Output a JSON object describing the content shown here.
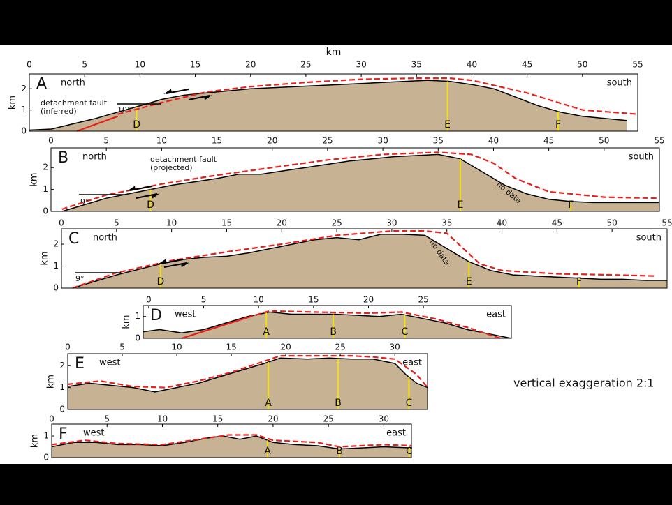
{
  "caption": "vertical exaggeration 2:1",
  "chart_data": [
    {
      "type": "area",
      "panel": "A",
      "x_label": "km",
      "y_label": "km",
      "left_label": "north",
      "right_label": "south",
      "xlim": [
        0,
        55
      ],
      "xticks": [
        0,
        5,
        10,
        15,
        20,
        25,
        30,
        35,
        40,
        45,
        50,
        55
      ],
      "ylim": [
        0,
        2.7
      ],
      "yticks": [
        0,
        1,
        2
      ],
      "series": [
        {
          "x": [
            0,
            2,
            4,
            6,
            8,
            10,
            12,
            14,
            16,
            18,
            20,
            22,
            24,
            26,
            28,
            30,
            32,
            34,
            36,
            38,
            40,
            42,
            44,
            46,
            48,
            50,
            52,
            54
          ],
          "values": [
            0.05,
            0.1,
            0.35,
            0.6,
            0.9,
            1.2,
            1.5,
            1.7,
            1.8,
            1.9,
            2.0,
            2.05,
            2.1,
            2.15,
            2.2,
            2.25,
            2.3,
            2.35,
            2.4,
            2.35,
            2.2,
            2.0,
            1.6,
            1.2,
            0.9,
            0.7,
            0.6,
            0.5
          ],
          "color": "#000000",
          "style": "topography"
        },
        {
          "x": [
            8,
            12,
            16,
            20,
            25,
            30,
            35,
            38,
            40,
            45,
            50,
            55
          ],
          "values": [
            0.8,
            1.35,
            1.85,
            2.1,
            2.3,
            2.45,
            2.5,
            2.5,
            2.4,
            1.8,
            1.0,
            0.8
          ],
          "color": "#e8201c",
          "style": "dashed"
        },
        {
          "x": [
            4.3,
            8
          ],
          "values": [
            0,
            0.7
          ],
          "color": "#e8201c",
          "style": "solid"
        }
      ],
      "markers": [
        {
          "x": 9.7,
          "label": "D"
        },
        {
          "x": 37.8,
          "label": "E"
        },
        {
          "x": 47.8,
          "label": "F"
        }
      ],
      "annotations": [
        "detachment fault",
        "(inferred)",
        "10°"
      ]
    },
    {
      "type": "area",
      "panel": "B",
      "y_label": "km",
      "left_label": "north",
      "right_label": "south",
      "xlim": [
        0,
        55
      ],
      "xticks": [
        0,
        5,
        10,
        15,
        20,
        25,
        30,
        35,
        40,
        45,
        50,
        55
      ],
      "ylim": [
        0,
        2.9
      ],
      "yticks": [
        0,
        1,
        2
      ],
      "series": [
        {
          "x": [
            1,
            3,
            5,
            7,
            9,
            11,
            13,
            15,
            17,
            19,
            21,
            23,
            25,
            27,
            29,
            31,
            33,
            35,
            37,
            39,
            41,
            43,
            45,
            47,
            49,
            51,
            53,
            55
          ],
          "values": [
            0,
            0.3,
            0.6,
            0.8,
            1.0,
            1.2,
            1.35,
            1.5,
            1.7,
            1.7,
            1.85,
            2.0,
            2.15,
            2.3,
            2.4,
            2.5,
            2.55,
            2.6,
            2.4,
            1.8,
            1.2,
            0.8,
            0.55,
            0.45,
            0.4,
            0.4,
            0.4,
            0.4
          ],
          "color": "#000000",
          "style": "topography"
        },
        {
          "x": [
            1,
            5,
            10,
            15,
            20,
            25,
            30,
            35,
            38,
            40,
            42,
            45,
            50,
            55
          ],
          "values": [
            0.1,
            0.75,
            1.25,
            1.65,
            2.0,
            2.35,
            2.6,
            2.7,
            2.6,
            2.2,
            1.5,
            0.9,
            0.65,
            0.6
          ],
          "color": "#e8201c",
          "style": "dashed"
        }
      ],
      "markers": [
        {
          "x": 9,
          "label": "D"
        },
        {
          "x": 37,
          "label": "E"
        },
        {
          "x": 47,
          "label": "F"
        }
      ],
      "annotations": [
        "detachment fault",
        "(projected)",
        "9°",
        "no data"
      ]
    },
    {
      "type": "area",
      "panel": "C",
      "y_label": "km",
      "left_label": "north",
      "right_label": "south",
      "xlim": [
        0,
        55
      ],
      "xticks": [
        0,
        5,
        10,
        15,
        20,
        25,
        30,
        35,
        40,
        45,
        50,
        55
      ],
      "ylim": [
        0,
        2.7
      ],
      "yticks": [
        0,
        1,
        2
      ],
      "series": [
        {
          "x": [
            1,
            3,
            5,
            7,
            9,
            11,
            13,
            15,
            17,
            19,
            21,
            23,
            25,
            27,
            29,
            31,
            33,
            35,
            37,
            39,
            41,
            43,
            45,
            47,
            49,
            51,
            53,
            55
          ],
          "values": [
            0,
            0.3,
            0.6,
            0.85,
            1.1,
            1.3,
            1.4,
            1.45,
            1.6,
            1.8,
            2.0,
            2.2,
            2.3,
            2.2,
            2.45,
            2.45,
            2.4,
            1.8,
            1.2,
            0.8,
            0.6,
            0.55,
            0.5,
            0.45,
            0.4,
            0.4,
            0.35,
            0.35
          ],
          "color": "#000000",
          "style": "topography"
        },
        {
          "x": [
            1,
            5,
            10,
            15,
            20,
            25,
            30,
            33,
            35,
            38,
            40,
            45,
            50,
            54
          ],
          "values": [
            0,
            0.7,
            1.25,
            1.65,
            2.0,
            2.4,
            2.6,
            2.6,
            2.5,
            1.1,
            0.8,
            0.65,
            0.6,
            0.55
          ],
          "color": "#e8201c",
          "style": "dashed"
        }
      ],
      "markers": [
        {
          "x": 9,
          "label": "D"
        },
        {
          "x": 37,
          "label": "E"
        },
        {
          "x": 47,
          "label": "F"
        }
      ],
      "annotations": [
        "9°",
        "no data"
      ]
    },
    {
      "type": "area",
      "panel": "D",
      "y_label": "km",
      "left_label": "west",
      "right_label": "east",
      "xlim": [
        -0.5,
        33
      ],
      "xticks": [
        0,
        5,
        10,
        15,
        20,
        25
      ],
      "ylim": [
        0,
        1.5
      ],
      "yticks": [
        0,
        1
      ],
      "series": [
        {
          "x": [
            -0.5,
            1,
            3,
            5,
            7,
            9,
            11,
            13,
            15,
            17,
            19,
            21,
            23,
            25,
            27,
            29,
            31,
            33
          ],
          "values": [
            0.3,
            0.4,
            0.25,
            0.4,
            0.7,
            1.0,
            1.2,
            1.1,
            1.1,
            1.1,
            1.05,
            1.0,
            1.1,
            0.9,
            0.7,
            0.4,
            0.2,
            0
          ],
          "color": "#000000",
          "style": "topography"
        },
        {
          "x": [
            9,
            11,
            15,
            20,
            23,
            26,
            29,
            32
          ],
          "values": [
            0.95,
            1.25,
            1.2,
            1.15,
            1.2,
            0.9,
            0.5,
            0
          ],
          "color": "#e8201c",
          "style": "dashed"
        },
        {
          "x": [
            3,
            9
          ],
          "values": [
            0,
            0.95
          ],
          "color": "#e8201c",
          "style": "solid"
        }
      ],
      "markers": [
        {
          "x": 10.7,
          "label": "A"
        },
        {
          "x": 16.8,
          "label": "B"
        },
        {
          "x": 23.3,
          "label": "C"
        }
      ],
      "annotations": []
    },
    {
      "type": "area",
      "panel": "E",
      "y_label": "km",
      "left_label": "west",
      "right_label": "east",
      "xlim": [
        0,
        33
      ],
      "xticks": [
        0,
        5,
        10,
        15,
        20,
        25,
        30
      ],
      "ylim": [
        0,
        2.55
      ],
      "yticks": [
        0,
        1,
        2
      ],
      "series": [
        {
          "x": [
            0,
            2,
            4,
            6,
            8,
            10,
            12,
            14,
            16,
            18,
            19.5,
            22,
            24,
            26,
            28,
            30,
            31,
            32,
            33
          ],
          "values": [
            1.05,
            1.2,
            1.1,
            1.0,
            0.8,
            1.0,
            1.2,
            1.5,
            1.8,
            2.1,
            2.35,
            2.3,
            2.35,
            2.3,
            2.3,
            2.1,
            1.6,
            1.2,
            1.0
          ],
          "color": "#000000",
          "style": "topography"
        },
        {
          "x": [
            0,
            3,
            6,
            9,
            12,
            15,
            18,
            19.5,
            22,
            26,
            28,
            30,
            32,
            33
          ],
          "values": [
            1.15,
            1.3,
            1.05,
            1.0,
            1.3,
            1.7,
            2.2,
            2.45,
            2.45,
            2.45,
            2.4,
            2.3,
            1.6,
            1.0
          ],
          "color": "#e8201c",
          "style": "dashed"
        }
      ],
      "markers": [
        {
          "x": 18.4,
          "label": "A"
        },
        {
          "x": 24.8,
          "label": "B"
        },
        {
          "x": 31.3,
          "label": "C"
        }
      ],
      "annotations": []
    },
    {
      "type": "area",
      "panel": "F",
      "y_label": "km",
      "left_label": "west",
      "right_label": "east",
      "xlim": [
        0,
        32.5
      ],
      "xticks": [
        0,
        5,
        10,
        15,
        20,
        25,
        30
      ],
      "ylim": [
        0,
        1.55
      ],
      "yticks": [
        0,
        1
      ],
      "series": [
        {
          "x": [
            0,
            2,
            4,
            6,
            8,
            10,
            12,
            14,
            15.5,
            17,
            18.5,
            20,
            22,
            24,
            26,
            28,
            30,
            32.5
          ],
          "values": [
            0.5,
            0.7,
            0.7,
            0.6,
            0.6,
            0.55,
            0.7,
            0.9,
            1.0,
            0.85,
            1.0,
            0.7,
            0.6,
            0.55,
            0.4,
            0.45,
            0.5,
            0.45
          ],
          "color": "#000000",
          "style": "topography"
        },
        {
          "x": [
            0,
            3,
            6,
            10,
            14,
            16,
            18.5,
            20,
            24,
            26,
            30,
            32.5
          ],
          "values": [
            0.6,
            0.8,
            0.65,
            0.6,
            0.9,
            1.05,
            1.05,
            0.8,
            0.7,
            0.5,
            0.6,
            0.55
          ],
          "color": "#e8201c",
          "style": "dashed"
        }
      ],
      "markers": [
        {
          "x": 19.5,
          "label": "A"
        },
        {
          "x": 26,
          "label": "B"
        },
        {
          "x": 32.3,
          "label": "C"
        }
      ],
      "annotations": []
    }
  ]
}
